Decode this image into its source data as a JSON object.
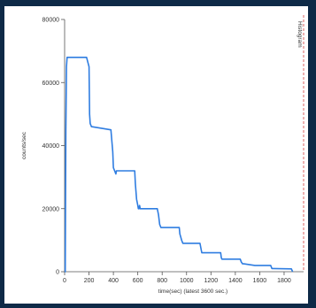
{
  "colors": {
    "frame": "#0e2a47",
    "panel": "#ffffff",
    "series": "#2f7de1",
    "axis": "#555555",
    "marker": "#d23c3c"
  },
  "side_label": "Histogram",
  "chart_data": {
    "type": "line",
    "xlabel": "time(sec) (latest 3600 sec.)",
    "ylabel": "counts/sec",
    "xlim": [
      0,
      1960
    ],
    "ylim": [
      0,
      80000
    ],
    "grid": false,
    "x_ticks": [
      "0",
      "200",
      "400",
      "600",
      "800",
      "1000",
      "1200",
      "1400",
      "1600",
      "1800"
    ],
    "y_ticks": [
      "0",
      "20000",
      "40000",
      "60000",
      "80000"
    ],
    "series": [
      {
        "x": [
          0,
          5,
          10,
          15,
          20,
          180,
          200,
          205,
          210,
          220,
          380,
          395,
          400,
          410,
          420,
          425,
          575,
          580,
          590,
          595,
          600,
          605,
          610,
          615,
          620,
          760,
          770,
          780,
          790,
          800,
          940,
          945,
          960,
          970,
          980,
          1110,
          1120,
          1125,
          1130,
          1140,
          1280,
          1285,
          1290,
          1300,
          1440,
          1450,
          1460,
          1470,
          1560,
          1690,
          1700,
          1710,
          1860,
          1870
        ],
        "y": [
          0,
          0,
          45000,
          65000,
          68000,
          68000,
          65000,
          50000,
          47000,
          46000,
          45000,
          38000,
          33000,
          32000,
          31000,
          32000,
          32000,
          28000,
          23000,
          22000,
          21000,
          20000,
          20000,
          21000,
          20000,
          20000,
          18000,
          15000,
          14000,
          14000,
          14000,
          12000,
          10000,
          9000,
          9000,
          9000,
          7000,
          6000,
          6000,
          6000,
          6000,
          4500,
          4000,
          4000,
          4000,
          3000,
          2500,
          2500,
          2000,
          2000,
          1000,
          1000,
          900,
          0
        ]
      }
    ]
  }
}
